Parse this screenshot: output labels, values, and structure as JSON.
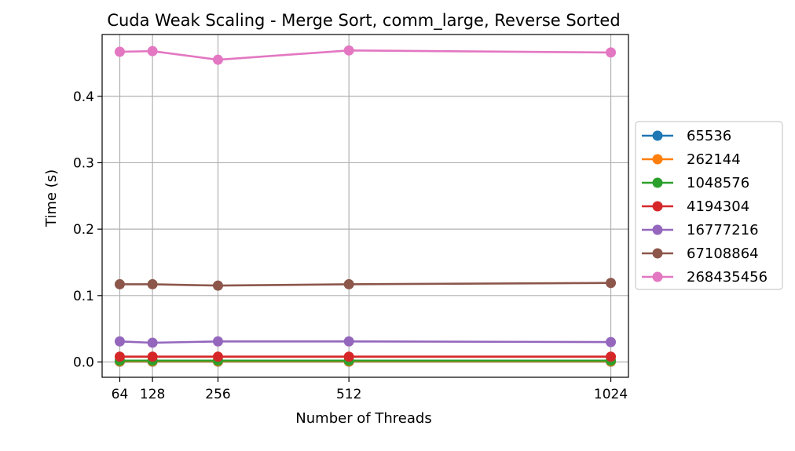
{
  "chart_data": {
    "type": "line",
    "title": "Cuda Weak Scaling - Merge Sort, comm_large, Reverse Sorted",
    "xlabel": "Number of Threads",
    "ylabel": "Time (s)",
    "x": [
      64,
      128,
      256,
      512,
      1024
    ],
    "x_tick_labels": [
      "64",
      "128",
      "256",
      "512",
      "1024"
    ],
    "y_ticks": [
      0.0,
      0.1,
      0.2,
      0.3,
      0.4
    ],
    "y_tick_labels": [
      "0.0",
      "0.1",
      "0.2",
      "0.3",
      "0.4"
    ],
    "ylim": [
      -0.023,
      0.493
    ],
    "grid": true,
    "legend_position": "outside-right",
    "series": [
      {
        "name": "65536",
        "color": "#1f77b4",
        "values": [
          0.0005,
          0.0005,
          0.0005,
          0.0005,
          0.0005
        ]
      },
      {
        "name": "262144",
        "color": "#ff7f0e",
        "values": [
          0.0008,
          0.0008,
          0.0008,
          0.0008,
          0.0008
        ]
      },
      {
        "name": "1048576",
        "color": "#2ca02c",
        "values": [
          0.002,
          0.002,
          0.002,
          0.002,
          0.002
        ]
      },
      {
        "name": "4194304",
        "color": "#d62728",
        "values": [
          0.008,
          0.008,
          0.008,
          0.008,
          0.008
        ]
      },
      {
        "name": "16777216",
        "color": "#9467bd",
        "values": [
          0.031,
          0.029,
          0.031,
          0.031,
          0.03
        ]
      },
      {
        "name": "67108864",
        "color": "#8c564b",
        "values": [
          0.117,
          0.117,
          0.115,
          0.117,
          0.119
        ]
      },
      {
        "name": "268435456",
        "color": "#e377c2",
        "values": [
          0.467,
          0.468,
          0.455,
          0.469,
          0.466
        ]
      }
    ]
  }
}
